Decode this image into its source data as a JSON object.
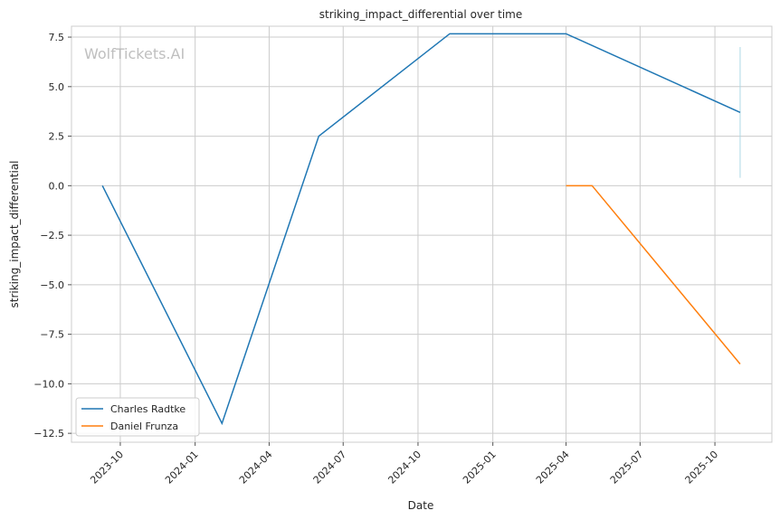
{
  "chart_data": {
    "type": "line",
    "title": "striking_impact_differential over time",
    "xlabel": "Date",
    "ylabel": "striking_impact_differential",
    "watermark": "WolfTickets.AI",
    "x_ticks": [
      "2023-10",
      "2024-01",
      "2024-04",
      "2024-07",
      "2024-10",
      "2025-01",
      "2025-04",
      "2025-07",
      "2025-10"
    ],
    "y_ticks": [
      7.5,
      5.0,
      2.5,
      0.0,
      -2.5,
      -5.0,
      -7.5,
      -10.0,
      -12.5
    ],
    "y_tick_labels": [
      "7.5",
      "5.0",
      "2.5",
      "0.0",
      "−2.5",
      "−5.0",
      "−7.5",
      "−10.0",
      "−12.5"
    ],
    "xlim": [
      "2023-08-02",
      "2025-12-10"
    ],
    "ylim": [
      -12.95,
      8.05
    ],
    "grid": true,
    "legend_position": "lower-left",
    "series": [
      {
        "name": "Charles Radtke",
        "color": "#1f77b4",
        "points": [
          {
            "x": "2023-09-09",
            "y": 0.0
          },
          {
            "x": "2024-02-03",
            "y": -12.0
          },
          {
            "x": "2024-06-01",
            "y": 2.5
          },
          {
            "x": "2024-11-09",
            "y": 7.67
          },
          {
            "x": "2025-04-01",
            "y": 7.67
          },
          {
            "x": "2025-11-01",
            "y": 3.7
          }
        ]
      },
      {
        "name": "Daniel Frunza",
        "color": "#ff7f0e",
        "points": [
          {
            "x": "2025-04-01",
            "y": 0.0
          },
          {
            "x": "2025-05-03",
            "y": 0.0
          },
          {
            "x": "2025-11-01",
            "y": -9.0
          }
        ]
      }
    ],
    "error_bar": {
      "x": "2025-11-01",
      "y_low": 0.4,
      "y_high": 7.0,
      "color": "#add8e6"
    }
  }
}
